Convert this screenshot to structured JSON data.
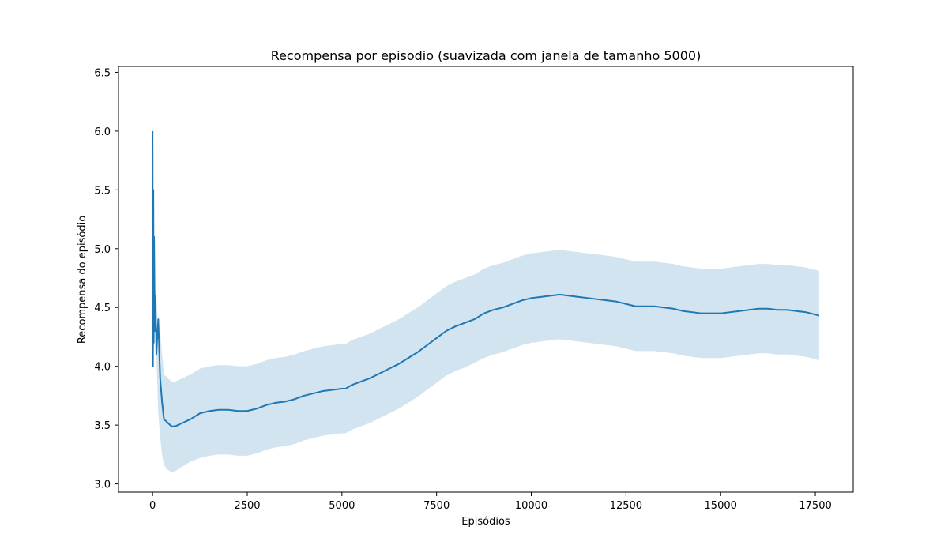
{
  "chart_data": {
    "type": "line",
    "title": "Recompensa por episodio (suavizada com janela de tamanho 5000)",
    "xlabel": "Episódios",
    "ylabel": "Recompensa do episódio",
    "xlim": [
      -900,
      18500
    ],
    "ylim": [
      2.93,
      6.55
    ],
    "xticks": [
      0,
      2500,
      5000,
      7500,
      10000,
      12500,
      15000,
      17500
    ],
    "xtick_labels": [
      "0",
      "2500",
      "5000",
      "7500",
      "10000",
      "12500",
      "15000",
      "17500"
    ],
    "yticks": [
      3.0,
      3.5,
      4.0,
      4.5,
      5.0,
      5.5,
      6.0,
      6.5
    ],
    "ytick_labels": [
      "3.0",
      "3.5",
      "4.0",
      "4.5",
      "5.0",
      "5.5",
      "6.0",
      "6.5"
    ],
    "grid": false,
    "colors": {
      "line": "#1f77b4",
      "band": "#1f77b4",
      "band_opacity": 0.2
    },
    "series": [
      {
        "x": [
          0,
          10,
          20,
          30,
          40,
          60,
          80,
          100,
          150,
          200,
          250,
          300,
          400,
          500,
          600,
          800,
          1000,
          1250,
          1500,
          1750,
          2000,
          2250,
          2500,
          2750,
          3000,
          3250,
          3500,
          3750,
          4000,
          4250,
          4500,
          4750,
          5000,
          5100,
          5250,
          5500,
          5750,
          6000,
          6250,
          6500,
          6750,
          7000,
          7250,
          7500,
          7750,
          8000,
          8250,
          8500,
          8750,
          9000,
          9250,
          9500,
          9750,
          10000,
          10250,
          10500,
          10750,
          11000,
          11250,
          11500,
          11750,
          12000,
          12250,
          12500,
          12750,
          13000,
          13250,
          13500,
          13750,
          14000,
          14250,
          14500,
          14750,
          15000,
          15250,
          15500,
          15750,
          16000,
          16250,
          16500,
          16750,
          17000,
          17250,
          17500,
          17600
        ],
        "mean": [
          6.0,
          4.0,
          5.5,
          4.2,
          5.1,
          4.3,
          4.6,
          4.1,
          4.4,
          3.9,
          3.7,
          3.55,
          3.52,
          3.49,
          3.49,
          3.52,
          3.55,
          3.6,
          3.62,
          3.63,
          3.63,
          3.62,
          3.62,
          3.64,
          3.67,
          3.69,
          3.7,
          3.72,
          3.75,
          3.77,
          3.79,
          3.8,
          3.81,
          3.81,
          3.84,
          3.87,
          3.9,
          3.94,
          3.98,
          4.02,
          4.07,
          4.12,
          4.18,
          4.24,
          4.3,
          4.34,
          4.37,
          4.4,
          4.45,
          4.48,
          4.5,
          4.53,
          4.56,
          4.58,
          4.59,
          4.6,
          4.61,
          4.6,
          4.59,
          4.58,
          4.57,
          4.56,
          4.55,
          4.53,
          4.51,
          4.51,
          4.51,
          4.5,
          4.49,
          4.47,
          4.46,
          4.45,
          4.45,
          4.45,
          4.46,
          4.47,
          4.48,
          4.49,
          4.49,
          4.48,
          4.48,
          4.47,
          4.46,
          4.44,
          4.43
        ],
        "lower": [
          6.0,
          4.0,
          5.5,
          4.2,
          5.1,
          4.3,
          4.6,
          4.1,
          3.6,
          3.4,
          3.25,
          3.16,
          3.12,
          3.1,
          3.11,
          3.15,
          3.19,
          3.22,
          3.24,
          3.25,
          3.25,
          3.24,
          3.24,
          3.26,
          3.29,
          3.31,
          3.32,
          3.34,
          3.37,
          3.39,
          3.41,
          3.42,
          3.43,
          3.43,
          3.46,
          3.49,
          3.52,
          3.56,
          3.6,
          3.64,
          3.69,
          3.74,
          3.8,
          3.86,
          3.92,
          3.96,
          3.99,
          4.03,
          4.07,
          4.1,
          4.12,
          4.15,
          4.18,
          4.2,
          4.21,
          4.22,
          4.23,
          4.22,
          4.21,
          4.2,
          4.19,
          4.18,
          4.17,
          4.15,
          4.13,
          4.13,
          4.13,
          4.12,
          4.11,
          4.09,
          4.08,
          4.07,
          4.07,
          4.07,
          4.08,
          4.09,
          4.1,
          4.11,
          4.11,
          4.1,
          4.1,
          4.09,
          4.08,
          4.06,
          4.05
        ],
        "upper": [
          6.0,
          4.0,
          5.5,
          4.2,
          5.1,
          4.3,
          4.6,
          4.1,
          4.2,
          4.3,
          4.1,
          3.93,
          3.9,
          3.87,
          3.87,
          3.9,
          3.93,
          3.98,
          4.0,
          4.01,
          4.01,
          4.0,
          4.0,
          4.02,
          4.05,
          4.07,
          4.08,
          4.1,
          4.13,
          4.15,
          4.17,
          4.18,
          4.19,
          4.19,
          4.22,
          4.25,
          4.28,
          4.32,
          4.36,
          4.4,
          4.45,
          4.5,
          4.56,
          4.62,
          4.68,
          4.72,
          4.75,
          4.78,
          4.83,
          4.86,
          4.88,
          4.91,
          4.94,
          4.96,
          4.97,
          4.98,
          4.99,
          4.98,
          4.97,
          4.96,
          4.95,
          4.94,
          4.93,
          4.91,
          4.89,
          4.89,
          4.89,
          4.88,
          4.87,
          4.85,
          4.84,
          4.83,
          4.83,
          4.83,
          4.84,
          4.85,
          4.86,
          4.87,
          4.87,
          4.86,
          4.86,
          4.85,
          4.84,
          4.82,
          4.81
        ]
      }
    ]
  }
}
